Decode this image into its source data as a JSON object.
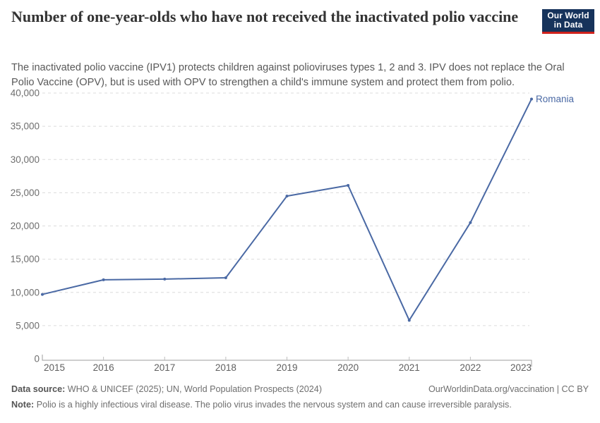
{
  "header": {
    "title": "Number of one-year-olds who have not received the inactivated polio vaccine",
    "subtitle": "The inactivated polio vaccine (IPV1) protects children against polioviruses types 1, 2 and 3. IPV does not replace the Oral Polio Vaccine (OPV), but is used with OPV to strengthen a child's immune system and protect them from polio.",
    "logo": {
      "line1": "Our World",
      "line2": "in Data"
    }
  },
  "chart_data": {
    "type": "line",
    "title": "Number of one-year-olds who have not received the inactivated polio vaccine",
    "x": [
      2015,
      2016,
      2017,
      2018,
      2019,
      2020,
      2021,
      2022,
      2023
    ],
    "series": [
      {
        "name": "Romania",
        "values": [
          9700,
          11900,
          12000,
          12200,
          24500,
          26100,
          5800,
          20500,
          39100
        ],
        "color": "#4a69a4"
      }
    ],
    "end_label": "Romania",
    "xlabel": "",
    "ylabel": "",
    "ylim": [
      0,
      40000
    ],
    "yticks": [
      0,
      5000,
      10000,
      15000,
      20000,
      25000,
      30000,
      35000,
      40000
    ],
    "grid": "horizontal-dashed",
    "legend_position": "end-of-line"
  },
  "footer": {
    "data_source_label": "Data source:",
    "data_source": "WHO & UNICEF (2025); UN, World Population Prospects (2024)",
    "note_label": "Note:",
    "note": "Polio is a highly infectious viral disease. The polio virus invades the nervous system and can cause irreversible paralysis.",
    "link": "OurWorldinData.org/vaccination | CC BY"
  },
  "colors": {
    "series_blue": "#4a69a4",
    "gridline": "#dcdcdc",
    "axis_line": "#9e9e9e",
    "axis_tick": "#bdbdbd",
    "tick_label": "#6e6e6e",
    "logo_bg": "#16335b",
    "logo_red": "#d0221c"
  }
}
